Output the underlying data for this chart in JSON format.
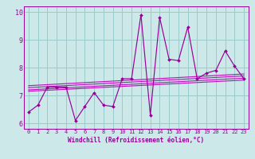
{
  "title": "",
  "xlabel": "Windchill (Refroidissement éolien,°C)",
  "bg_color": "#cce8e8",
  "grid_color": "#99cccc",
  "line_color": "#990099",
  "trend_color": "#bb00bb",
  "xlim": [
    -0.5,
    23.5
  ],
  "ylim": [
    5.8,
    10.2
  ],
  "yticks": [
    6,
    7,
    8,
    9,
    10
  ],
  "xticks": [
    0,
    1,
    2,
    3,
    4,
    5,
    6,
    7,
    8,
    9,
    10,
    11,
    12,
    13,
    14,
    15,
    16,
    17,
    18,
    19,
    20,
    21,
    22,
    23
  ],
  "data_x": [
    0,
    1,
    2,
    3,
    4,
    5,
    6,
    7,
    8,
    9,
    10,
    11,
    12,
    13,
    14,
    15,
    16,
    17,
    18,
    19,
    20,
    21,
    22,
    23
  ],
  "data_y": [
    6.4,
    6.65,
    7.3,
    7.3,
    7.3,
    6.1,
    6.6,
    7.1,
    6.65,
    6.6,
    7.6,
    7.6,
    9.9,
    6.3,
    9.8,
    8.3,
    8.25,
    9.45,
    7.6,
    7.8,
    7.9,
    8.6,
    8.05,
    7.6
  ],
  "trend_lines": [
    {
      "x0": 0,
      "x1": 23,
      "y0": 7.15,
      "y1": 7.55
    },
    {
      "x0": 0,
      "x1": 23,
      "y0": 7.2,
      "y1": 7.62
    },
    {
      "x0": 0,
      "x1": 23,
      "y0": 7.28,
      "y1": 7.7
    },
    {
      "x0": 0,
      "x1": 23,
      "y0": 7.35,
      "y1": 7.77
    }
  ]
}
